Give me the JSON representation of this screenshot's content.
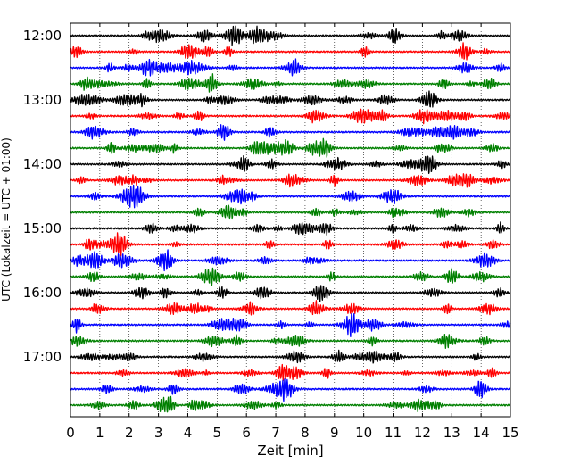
{
  "chart_data": {
    "type": "line",
    "title": "",
    "xlabel": "Zeit  [min]",
    "ylabel": "UTC (Lokalzeit = UTC + 01:00)",
    "xlim": [
      0,
      15
    ],
    "x_ticks": [
      "0",
      "1",
      "2",
      "3",
      "4",
      "5",
      "6",
      "7",
      "8",
      "9",
      "10",
      "11",
      "12",
      "13",
      "14",
      "15"
    ],
    "y_ticks": [
      "12:00",
      "13:00",
      "14:00",
      "15:00",
      "16:00",
      "17:00"
    ],
    "grid": "vertical dotted lines at each minute",
    "trace_interval_min": 15,
    "trace_start": "12:00",
    "trace_end": "17:45",
    "trace_colors": [
      "#000000",
      "#ff0000",
      "#0000ff",
      "#008000"
    ],
    "traces": [
      {
        "start": "12:00",
        "color": "#000000"
      },
      {
        "start": "12:15",
        "color": "#ff0000"
      },
      {
        "start": "12:30",
        "color": "#0000ff"
      },
      {
        "start": "12:45",
        "color": "#008000"
      },
      {
        "start": "13:00",
        "color": "#000000"
      },
      {
        "start": "13:15",
        "color": "#ff0000"
      },
      {
        "start": "13:30",
        "color": "#0000ff"
      },
      {
        "start": "13:45",
        "color": "#008000"
      },
      {
        "start": "14:00",
        "color": "#000000"
      },
      {
        "start": "14:15",
        "color": "#ff0000"
      },
      {
        "start": "14:30",
        "color": "#0000ff"
      },
      {
        "start": "14:45",
        "color": "#008000"
      },
      {
        "start": "15:00",
        "color": "#000000"
      },
      {
        "start": "15:15",
        "color": "#ff0000"
      },
      {
        "start": "15:30",
        "color": "#0000ff"
      },
      {
        "start": "15:45",
        "color": "#008000"
      },
      {
        "start": "16:00",
        "color": "#000000"
      },
      {
        "start": "16:15",
        "color": "#ff0000"
      },
      {
        "start": "16:30",
        "color": "#0000ff"
      },
      {
        "start": "16:45",
        "color": "#008000"
      },
      {
        "start": "17:00",
        "color": "#000000"
      },
      {
        "start": "17:15",
        "color": "#ff0000"
      },
      {
        "start": "17:30",
        "color": "#0000ff"
      },
      {
        "start": "17:45",
        "color": "#008000"
      }
    ]
  }
}
